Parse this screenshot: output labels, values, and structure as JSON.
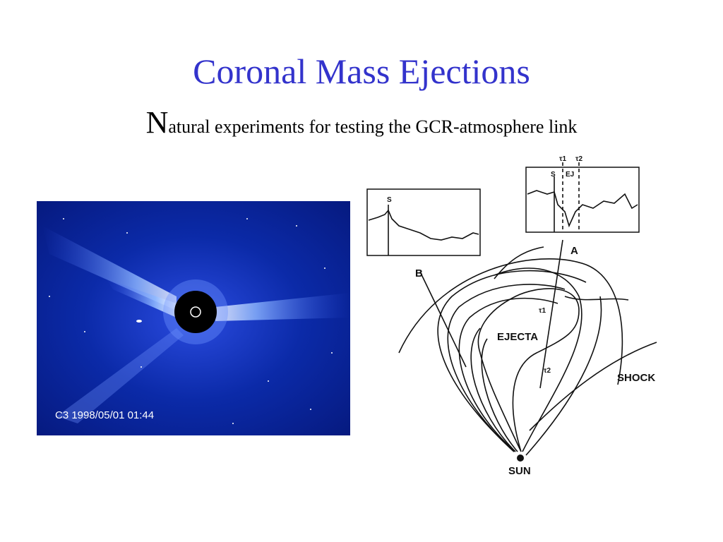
{
  "header": {
    "title": "Coronal Mass Ejections",
    "subtitle_initial": "N",
    "subtitle_rest": "atural experiments for testing the GCR-atmosphere link"
  },
  "image": {
    "caption": "C3  1998/05/01 01:44"
  },
  "diagram": {
    "inset_b": {
      "marker": "S"
    },
    "inset_a": {
      "markers": [
        "S",
        "τ1",
        "τ2",
        "EJ"
      ]
    },
    "labels": {
      "b": "B",
      "a": "A",
      "ejecta": "EJECTA",
      "tau1": "τ1",
      "tau2": "τ2",
      "shock": "SHOCK",
      "sun": "SUN"
    }
  }
}
